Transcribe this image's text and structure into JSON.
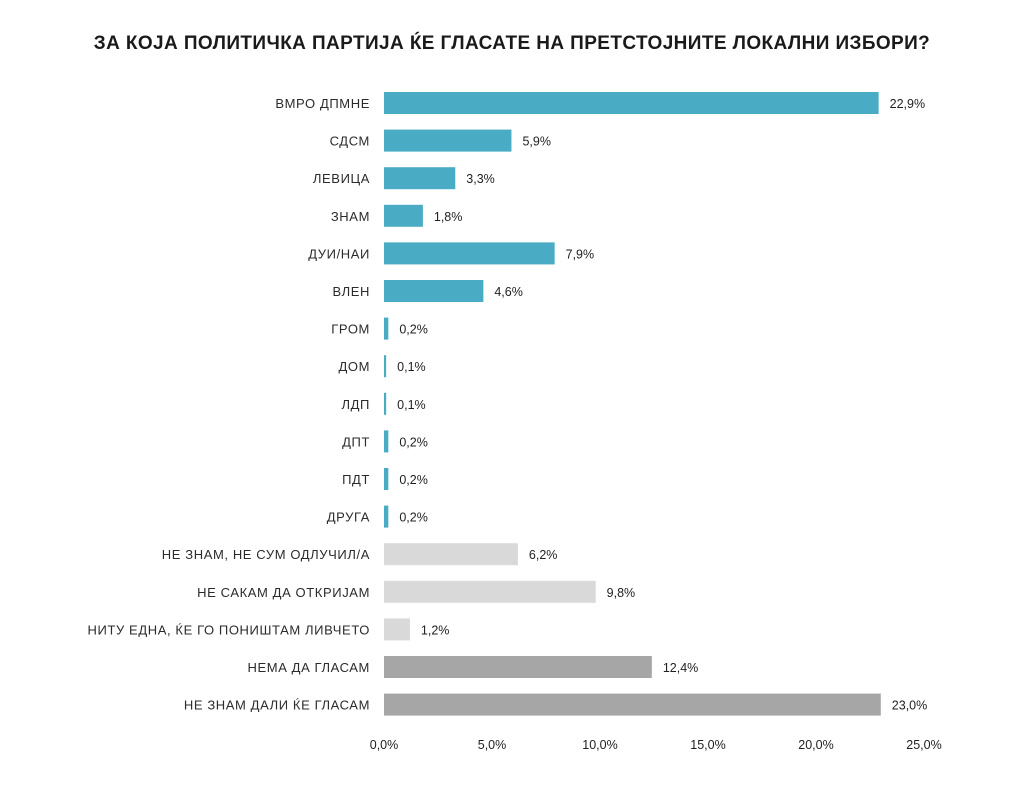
{
  "chart_data": {
    "type": "bar",
    "orientation": "horizontal",
    "title": "ЗА КОЈА ПОЛИТИЧКА ПАРТИЈА ЌЕ ГЛАСАТЕ НА ПРЕТСТОЈНИТЕ ЛОКАЛНИ ИЗБОРИ?",
    "xlabel": "",
    "ylabel": "",
    "xlim": [
      0,
      25
    ],
    "x_ticks": [
      "0,0%",
      "5,0%",
      "10,0%",
      "15,0%",
      "20,0%",
      "25,0%"
    ],
    "x_tick_values": [
      0,
      5,
      10,
      15,
      20,
      25
    ],
    "grid": false,
    "categories": [
      "ВМРО ДПМНЕ",
      "СДСМ",
      "ЛЕВИЦА",
      "ЗНАМ",
      "ДУИ/НАИ",
      "ВЛЕН",
      "ГРОМ",
      "ДОМ",
      "ЛДП",
      "ДПТ",
      "ПДТ",
      "ДРУГА",
      "НЕ ЗНАМ, НЕ СУМ ОДЛУЧИЛ/А",
      "НЕ САКАМ ДА ОТКРИЈАМ",
      "НИТУ ЕДНА, ЌЕ ГО ПОНИШТАМ ЛИВЧЕТО",
      "НЕМА ДА ГЛАСАМ",
      "НЕ ЗНАМ ДАЛИ ЌЕ ГЛАСАМ"
    ],
    "values": [
      22.9,
      5.9,
      3.3,
      1.8,
      7.9,
      4.6,
      0.2,
      0.1,
      0.1,
      0.2,
      0.2,
      0.2,
      6.2,
      9.8,
      1.2,
      12.4,
      23.0
    ],
    "value_labels": [
      "22,9%",
      "5,9%",
      "3,3%",
      "1,8%",
      "7,9%",
      "4,6%",
      "0,2%",
      "0,1%",
      "0,1%",
      "0,2%",
      "0,2%",
      "0,2%",
      "6,2%",
      "9,8%",
      "1,2%",
      "12,4%",
      "23,0%"
    ],
    "bar_colors": [
      "#4aabc4",
      "#4aabc4",
      "#4aabc4",
      "#4aabc4",
      "#4aabc4",
      "#4aabc4",
      "#4aabc4",
      "#4aabc4",
      "#4aabc4",
      "#4aabc4",
      "#4aabc4",
      "#4aabc4",
      "#d9d9d9",
      "#d9d9d9",
      "#d9d9d9",
      "#a6a6a6",
      "#a6a6a6"
    ]
  }
}
